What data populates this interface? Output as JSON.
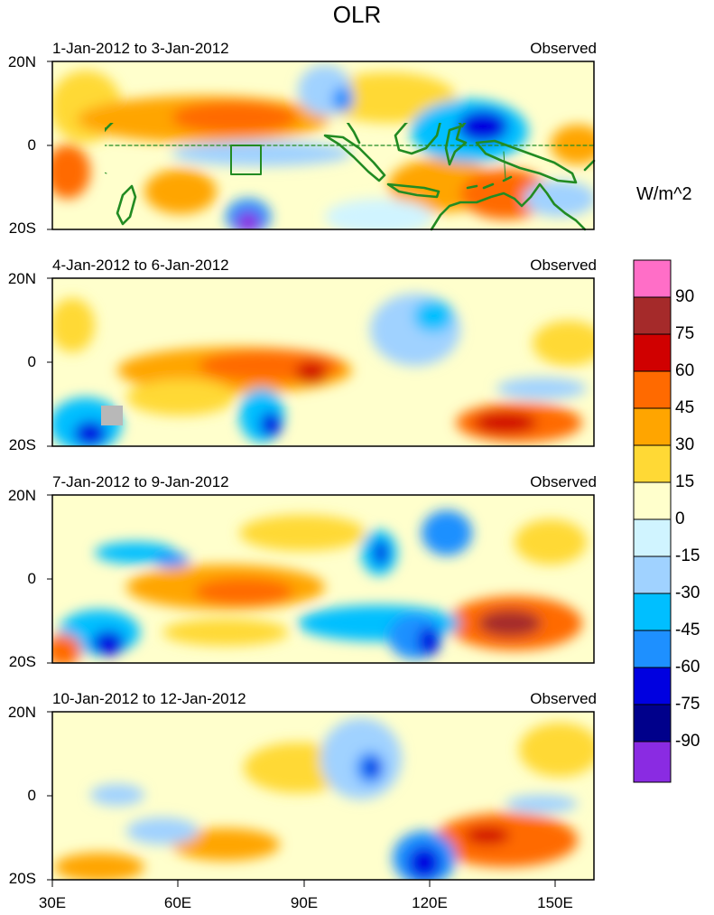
{
  "title": "OLR",
  "units": "W/m^2",
  "panels": [
    {
      "period": "1-Jan-2012 to 3-Jan-2012",
      "source": "Observed"
    },
    {
      "period": "4-Jan-2012 to 6-Jan-2012",
      "source": "Observed"
    },
    {
      "period": "7-Jan-2012 to 9-Jan-2012",
      "source": "Observed"
    },
    {
      "period": "10-Jan-2012 to 12-Jan-2012",
      "source": "Observed"
    }
  ],
  "lat_labels": {
    "north": "20N",
    "equator": "0",
    "south": "20S"
  },
  "lon_labels": [
    "30E",
    "60E",
    "90E",
    "120E",
    "150E"
  ],
  "colorbar": {
    "labels": [
      "90",
      "75",
      "60",
      "45",
      "30",
      "15",
      "0",
      "-15",
      "-30",
      "-45",
      "-60",
      "-75",
      "-90"
    ],
    "colors": [
      "#ff6ec7",
      "#a52a2a",
      "#d00000",
      "#ff6a00",
      "#ffa500",
      "#ffd935",
      "#ffffcc",
      "#d0f4ff",
      "#a0d2ff",
      "#00bfff",
      "#1e90ff",
      "#0000e0",
      "#00008b",
      "#8a2be2"
    ]
  },
  "palette": {
    "land_outline": "#228b22",
    "box_outline": "#228b22",
    "missing": "#b8b8b8"
  }
}
